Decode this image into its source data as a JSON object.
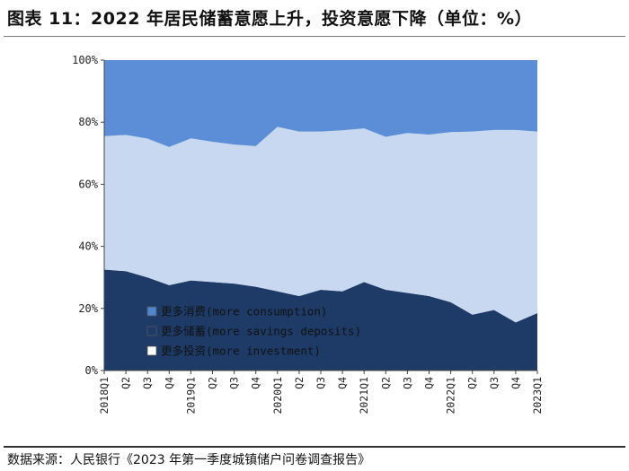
{
  "header": {
    "title": "图表 11：2022 年居民储蓄意愿上升，投资意愿下降（单位：%）"
  },
  "footer": {
    "source": "数据来源：人民银行《2023 年第一季度城镇储户问卷调查报告》"
  },
  "colors": {
    "consumption": "#5b8ed6",
    "savings": "#1e3b68",
    "investment": "#c8d8f0",
    "consumption_swatch": "#4f86cf",
    "savings_swatch": "#1e3b68",
    "investment_swatch": "#ffffff"
  },
  "chart_data": {
    "type": "area",
    "stacked": true,
    "title": "2022 年居民储蓄意愿上升，投资意愿下降",
    "xlabel": "",
    "ylabel": "",
    "ylim": [
      0,
      100
    ],
    "yticks": [
      "0%",
      "20%",
      "40%",
      "60%",
      "80%",
      "100%"
    ],
    "legend_position": "bottom-left",
    "categories": [
      "2018Q1",
      "Q2",
      "Q3",
      "Q4",
      "2019Q1",
      "Q2",
      "Q3",
      "Q4",
      "2020Q1",
      "Q2",
      "Q3",
      "Q4",
      "2021Q1",
      "Q2",
      "Q3",
      "Q4",
      "2022Q1",
      "Q2",
      "Q3",
      "Q4",
      "2023Q1"
    ],
    "series": [
      {
        "key": "savings",
        "name": "更多储蓄(more savings deposits)",
        "values": [
          32.5,
          32.0,
          30.0,
          27.5,
          29.0,
          28.5,
          28.0,
          27.0,
          25.5,
          24.0,
          26.0,
          25.5,
          28.5,
          26.0,
          25.0,
          24.0,
          22.0,
          18.0,
          19.5,
          15.5,
          18.5
        ]
      },
      {
        "key": "investment",
        "name": "更多投资(more investment)",
        "values": [
          43.0,
          43.9,
          44.7,
          44.5,
          45.8,
          45.2,
          44.8,
          45.3,
          53.0,
          53.0,
          51.0,
          51.9,
          49.5,
          49.3,
          51.5,
          52.0,
          54.8,
          59.0,
          58.0,
          62.0,
          58.5
        ]
      },
      {
        "key": "consumption",
        "name": "更多消费(more consumption)",
        "values": [
          24.5,
          24.1,
          25.3,
          28.0,
          25.2,
          26.3,
          27.2,
          27.7,
          21.5,
          23.0,
          23.0,
          22.6,
          22.0,
          24.7,
          23.5,
          24.0,
          23.2,
          23.0,
          22.5,
          22.5,
          23.0
        ]
      }
    ],
    "legend": [
      {
        "key": "consumption",
        "label": "更多消费(more consumption)"
      },
      {
        "key": "savings",
        "label": "更多储蓄(more savings deposits)"
      },
      {
        "key": "investment",
        "label": "更多投资(more investment)"
      }
    ]
  }
}
